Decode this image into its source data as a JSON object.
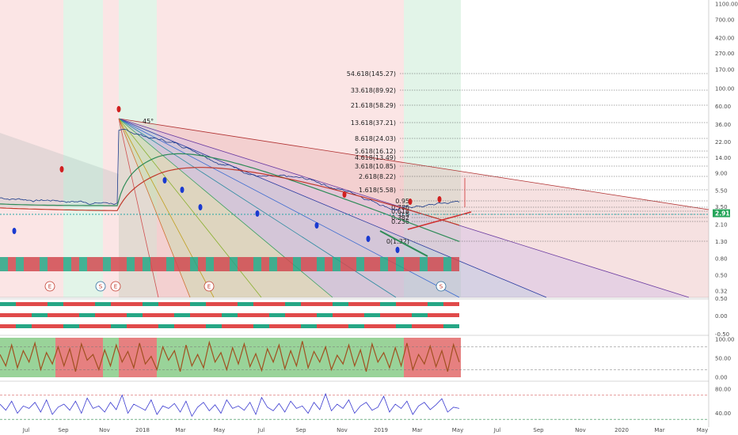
{
  "chart_data": {
    "type": "line",
    "scale": "log",
    "ylim": [
      0.32,
      1100
    ],
    "y_ticks": [
      "1100.00",
      "700.00",
      "420.00",
      "270.00",
      "170.00",
      "100.00",
      "60.00",
      "36.00",
      "22.00",
      "14.00",
      "9.00",
      "5.50",
      "3.50",
      "2.10",
      "1.30",
      "0.80",
      "0.50",
      "0.32"
    ],
    "current_price_label": "2.91",
    "x_ticks": [
      "Jul",
      "Sep",
      "Nov",
      "2018",
      "Mar",
      "May",
      "Jul",
      "Sep",
      "Nov",
      "2019",
      "Mar",
      "May",
      "Jul",
      "Sep",
      "Nov",
      "2020",
      "Mar",
      "May"
    ],
    "fib_levels": [
      "54.618(145.27)",
      "33.618(89.92)",
      "21.618(58.29)",
      "13.618(37.21)",
      "8.618(24.03)",
      "5.618(16.12)",
      "4.618(13.49)",
      "3.618(10.85)",
      "2.618(8.22)",
      "1.618(5.58)",
      "0.95",
      "0.786",
      "0.618",
      "0.5",
      "0.382",
      "0.236",
      "0(1.32)"
    ],
    "fan_angle_label": "45°",
    "event_badges": [
      "E",
      "S",
      "E",
      "E",
      "S"
    ],
    "oscillator_1": {
      "y_ticks": [
        "0.50",
        "0.00",
        "-0.50"
      ]
    },
    "oscillator_2": {
      "y_ticks": [
        "100.00",
        "50.00",
        "0.00"
      ],
      "values": [
        60,
        30,
        85,
        25,
        70,
        40,
        90,
        20,
        65,
        35,
        80,
        30,
        75,
        15,
        88,
        45,
        60,
        20,
        72,
        30,
        85,
        40,
        68,
        25,
        90,
        35,
        55,
        20,
        80,
        45,
        70,
        15,
        85,
        30,
        60,
        25,
        92,
        40,
        65,
        20,
        78,
        35,
        88,
        28,
        62,
        18,
        75,
        40,
        85,
        22,
        70,
        30,
        95,
        25,
        68,
        40,
        80,
        20,
        58,
        35,
        85,
        30,
        72,
        15,
        88,
        40,
        65,
        25,
        78,
        30,
        90,
        20,
        60,
        35,
        82,
        28,
        70,
        15,
        86,
        40
      ]
    },
    "oscillator_3": {
      "y_ticks": [
        "80.00",
        "40.00"
      ],
      "values": [
        55,
        45,
        60,
        40,
        52,
        48,
        58,
        42,
        62,
        38,
        50,
        55,
        45,
        60,
        40,
        65,
        48,
        52,
        42,
        58,
        46,
        70,
        40,
        55,
        50,
        45,
        62,
        38,
        52,
        48,
        56,
        42,
        60,
        35,
        50,
        58,
        44,
        54,
        40,
        62,
        48,
        52,
        45,
        58,
        38,
        66,
        50,
        44,
        56,
        42,
        60,
        48,
        52,
        40,
        58,
        46,
        72,
        44,
        55,
        48,
        62,
        40,
        52,
        58,
        45,
        50,
        68,
        42,
        55,
        48,
        60,
        38,
        52,
        58,
        46,
        54,
        64,
        42,
        50,
        48
      ]
    },
    "colors": {
      "bull_zone": "#d8f0e0",
      "bear_zone": "#f9dcdc",
      "price": "#1a3a8a",
      "ma_red": "#c0392b",
      "ma_green": "#2e8b57",
      "fan_red": "#b03030",
      "fan_blue": "#2a3aa0",
      "current_price_bg": "#26a65b"
    }
  }
}
